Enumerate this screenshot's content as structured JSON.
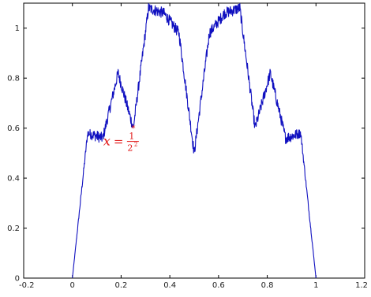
{
  "chart_data": {
    "type": "line",
    "title": "",
    "xlabel": "",
    "ylabel": "",
    "xlim": [
      -0.2,
      1.2
    ],
    "ylim": [
      0,
      1.1
    ],
    "xticks": [
      "-0.2",
      "0",
      "0.2",
      "0.4",
      "0.6",
      "0.8",
      "1",
      "1.2"
    ],
    "yticks": [
      "0",
      "0.2",
      "0.4",
      "0.6",
      "0.8",
      "1"
    ],
    "grid": false,
    "line_color": "#1010c0",
    "series": [
      {
        "x": [
          0,
          0.0625,
          0.125,
          0.1875,
          0.25,
          0.3125,
          0.375,
          0.4375,
          0.5,
          0.5625,
          0.625,
          0.6875,
          0.75,
          0.8125,
          0.875,
          0.9375,
          1
        ],
        "y": [
          0,
          0.58,
          0.56,
          0.82,
          0.6,
          1.08,
          1.06,
          0.98,
          0.5,
          0.98,
          1.06,
          1.08,
          0.6,
          0.82,
          0.56,
          0.58,
          0
        ]
      }
    ],
    "annotation": {
      "point": [
        0.25,
        0.6
      ],
      "marker": "*",
      "color": "#e01010",
      "label_var": "x",
      "label_eq": "=",
      "label_num": "1",
      "label_den": "2",
      "label_exp": "2"
    }
  }
}
